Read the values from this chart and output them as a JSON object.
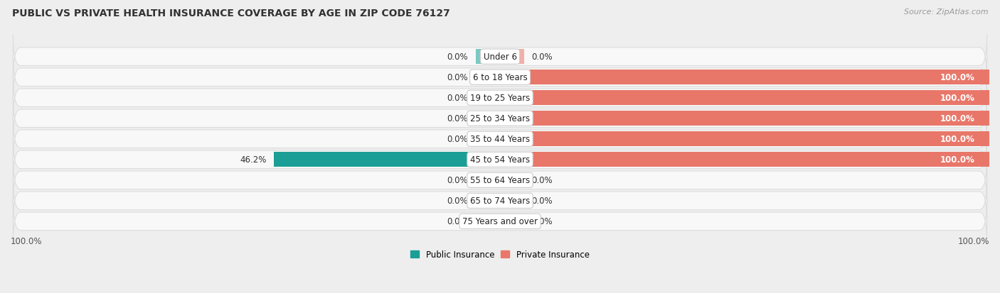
{
  "title": "PUBLIC VS PRIVATE HEALTH INSURANCE COVERAGE BY AGE IN ZIP CODE 76127",
  "source": "Source: ZipAtlas.com",
  "categories": [
    "Under 6",
    "6 to 18 Years",
    "19 to 25 Years",
    "25 to 34 Years",
    "35 to 44 Years",
    "45 to 54 Years",
    "55 to 64 Years",
    "65 to 74 Years",
    "75 Years and over"
  ],
  "public_values": [
    0.0,
    0.0,
    0.0,
    0.0,
    0.0,
    46.2,
    0.0,
    0.0,
    0.0
  ],
  "private_values": [
    0.0,
    100.0,
    100.0,
    100.0,
    100.0,
    100.0,
    0.0,
    0.0,
    0.0
  ],
  "public_color_active": "#1a9e96",
  "public_color_inactive": "#7ec8c4",
  "private_color_active": "#e8776a",
  "private_color_inactive": "#f0b0a8",
  "bg_color": "#eeeeee",
  "row_bg_color": "#f8f8f8",
  "row_border_color": "#dddddd",
  "xlim_left": -100,
  "xlim_right": 100,
  "title_fontsize": 10,
  "source_fontsize": 8,
  "label_fontsize": 8.5,
  "category_fontsize": 8.5,
  "legend_fontsize": 8.5,
  "axis_label_fontsize": 8.5,
  "pub_stub": 5,
  "priv_stub": 5
}
